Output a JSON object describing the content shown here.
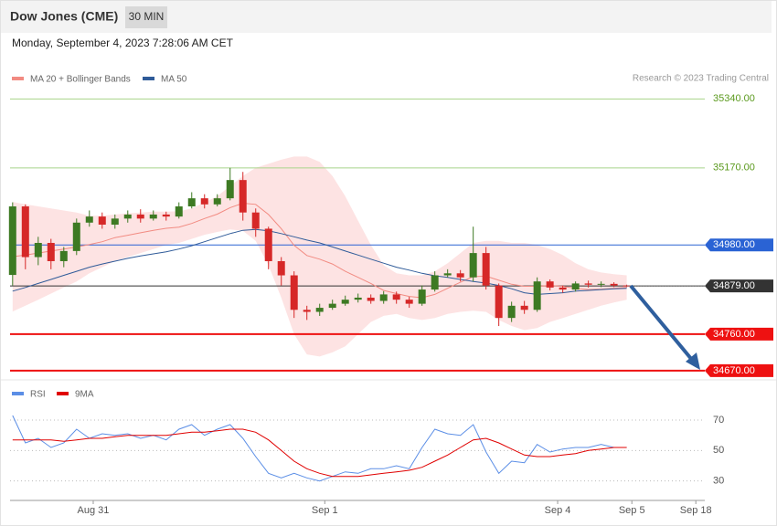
{
  "chart_data": [
    {
      "type": "candlestick",
      "title": "Dow Jones (CME)",
      "timeframe": "30 MIN",
      "subtitle": "Monday, September 4, 2023 7:28:06 AM CET",
      "credit": "Research © 2023 Trading Central",
      "open": [
        34906,
        35075,
        34950,
        34985,
        34940,
        34965,
        35035,
        35050,
        35030,
        35045,
        35055,
        35045,
        35055,
        35050,
        35075,
        35095,
        35080,
        35095,
        35140,
        35060,
        35020,
        34940,
        34905,
        34820,
        34815,
        34825,
        34835,
        34845,
        34850,
        34842,
        34858,
        34845,
        34835,
        34870,
        34905,
        34910,
        34900,
        34960,
        34880,
        34800,
        34830,
        34820,
        34890,
        34875,
        34870,
        34885,
        34882,
        34884,
        34880
      ],
      "high": [
        35085,
        35080,
        35000,
        34995,
        34975,
        35045,
        35065,
        35060,
        35055,
        35065,
        35068,
        35065,
        35062,
        35085,
        35110,
        35105,
        35105,
        35170,
        35160,
        35070,
        35025,
        34950,
        34915,
        34830,
        34835,
        34845,
        34855,
        34860,
        34858,
        34866,
        34865,
        34852,
        34880,
        34915,
        34920,
        34918,
        35025,
        34975,
        34885,
        34840,
        34842,
        34900,
        34895,
        34880,
        34890,
        34892,
        34890,
        34888,
        34882
      ],
      "low": [
        34880,
        34920,
        34930,
        34920,
        34925,
        34955,
        35025,
        35020,
        35020,
        35035,
        35035,
        35040,
        35040,
        35045,
        35070,
        35070,
        35075,
        35090,
        35040,
        35000,
        34920,
        34880,
        34800,
        34795,
        34805,
        34820,
        34830,
        34838,
        34835,
        34835,
        34835,
        34825,
        34830,
        34865,
        34900,
        34890,
        34890,
        34870,
        34780,
        34790,
        34810,
        34815,
        34868,
        34862,
        34865,
        34875,
        34876,
        34876,
        34876
      ],
      "close": [
        35075,
        34950,
        34985,
        34940,
        34965,
        35035,
        35050,
        35030,
        35045,
        35055,
        35045,
        35055,
        35050,
        35075,
        35095,
        35080,
        35095,
        35140,
        35060,
        35020,
        34940,
        34905,
        34820,
        34815,
        34825,
        34835,
        34845,
        34850,
        34842,
        34858,
        34845,
        34835,
        34870,
        34905,
        34910,
        34900,
        34960,
        34880,
        34800,
        34830,
        34820,
        34890,
        34875,
        34870,
        34885,
        34882,
        34884,
        34880,
        34879
      ],
      "up_color": "#3d7a23",
      "down_color": "#d62828",
      "overlays": [
        {
          "name": "MA 20 + Bollinger Bands",
          "color": "#f28b82",
          "band_color": "#fde3e3",
          "values": [
            34951,
            34955,
            34960,
            34965,
            34970,
            34975,
            34981,
            34988,
            34998,
            35004,
            35010,
            35016,
            35021,
            35024,
            35033,
            35045,
            35056,
            35072,
            35083,
            35080,
            35055,
            35020,
            34979,
            34954,
            34945,
            34933,
            34915,
            34900,
            34885,
            34868,
            34860,
            34853,
            34850,
            34858,
            34873,
            34888,
            34902,
            34903,
            34893,
            34883,
            34878,
            34878,
            34880,
            34878,
            34873,
            34870,
            34871,
            34873,
            34875
          ],
          "upper": [
            35086,
            35080,
            35075,
            35070,
            35065,
            35060,
            35052,
            35052,
            35055,
            35058,
            35060,
            35062,
            35062,
            35063,
            35070,
            35085,
            35100,
            35125,
            35150,
            35170,
            35180,
            35190,
            35198,
            35198,
            35185,
            35150,
            35100,
            35040,
            34980,
            34930,
            34910,
            34905,
            34905,
            34915,
            34935,
            34960,
            34985,
            34990,
            34990,
            34985,
            34985,
            34980,
            34970,
            34955,
            34935,
            34920,
            34912,
            34908,
            34905
          ],
          "lower": [
            34816,
            34830,
            34845,
            34860,
            34875,
            34890,
            34910,
            34925,
            34940,
            34950,
            34960,
            34970,
            34980,
            34985,
            34995,
            35005,
            35012,
            35018,
            35015,
            34990,
            34930,
            34850,
            34760,
            34710,
            34705,
            34715,
            34730,
            34760,
            34790,
            34805,
            34810,
            34800,
            34795,
            34800,
            34810,
            34815,
            34818,
            34815,
            34795,
            34780,
            34770,
            34775,
            34790,
            34800,
            34810,
            34820,
            34830,
            34838,
            34845
          ]
        },
        {
          "name": "MA 50",
          "color": "#2f5b99",
          "values": [
            34866,
            34875,
            34885,
            34895,
            34905,
            34915,
            34925,
            34933,
            34940,
            34947,
            34953,
            34958,
            34963,
            34970,
            34978,
            34988,
            34998,
            35008,
            35016,
            35018,
            35015,
            35008,
            35000,
            34992,
            34985,
            34975,
            34965,
            34955,
            34945,
            34935,
            34925,
            34918,
            34910,
            34904,
            34900,
            34895,
            34890,
            34886,
            34880,
            34872,
            34862,
            34858,
            34860,
            34862,
            34866,
            34868,
            34870,
            34872,
            34873
          ]
        }
      ],
      "levels": [
        {
          "value": 35340,
          "label": "35340.00",
          "color": "#a8d48a",
          "text_color": "#5b9a1e",
          "style": "text"
        },
        {
          "value": 35170,
          "label": "35170.00",
          "color": "#a8d48a",
          "text_color": "#5b9a1e",
          "style": "text"
        },
        {
          "value": 34980,
          "label": "34980.00",
          "color": "#2a63d4",
          "text_color": "#ffffff",
          "style": "box"
        },
        {
          "value": 34879,
          "label": "34879.00",
          "color": "#333333",
          "text_color": "#ffffff",
          "style": "box"
        },
        {
          "value": 34760,
          "label": "34760.00",
          "color": "#ee1111",
          "text_color": "#ffffff",
          "style": "box"
        },
        {
          "value": 34670,
          "label": "34670.00",
          "color": "#ee1111",
          "text_color": "#ffffff",
          "style": "box"
        }
      ],
      "xlim": [
        -0.2,
        54.1
      ],
      "ylim": [
        34645,
        35370
      ]
    },
    {
      "type": "line",
      "series": [
        {
          "name": "RSI",
          "color": "#5b8ee6",
          "values": [
            73,
            55,
            58,
            52,
            55,
            64,
            58,
            61,
            60,
            61,
            58,
            60,
            57,
            64,
            67,
            60,
            64,
            67,
            58,
            46,
            35,
            32,
            35,
            32,
            30,
            33,
            36,
            35,
            38,
            38,
            40,
            38,
            52,
            64,
            61,
            60,
            67,
            49,
            35,
            43,
            42,
            54,
            49,
            51,
            52,
            52,
            54,
            52,
            52
          ]
        },
        {
          "name": "9MA",
          "color": "#e00000",
          "values": [
            57,
            57,
            57,
            57,
            56,
            57,
            58,
            58,
            59,
            60,
            60,
            60,
            60,
            61,
            62,
            62,
            63,
            64,
            64,
            62,
            57,
            50,
            43,
            38,
            35,
            33,
            33,
            33,
            34,
            35,
            36,
            37,
            39,
            43,
            47,
            52,
            57,
            58,
            55,
            51,
            47,
            46,
            46,
            47,
            48,
            50,
            51,
            52,
            52
          ]
        }
      ],
      "xlim": [
        -0.2,
        54.1
      ],
      "ylim": [
        22,
        94
      ],
      "yticks": [
        70,
        50,
        30
      ],
      "xticks": [
        {
          "value": 6.3,
          "label": "Aug 31"
        },
        {
          "value": 24.4,
          "label": "Sep 1"
        },
        {
          "value": 42.6,
          "label": "Sep 4"
        },
        {
          "value": 48.4,
          "label": "Sep 5"
        },
        {
          "value": 53.4,
          "label": "Sep 18"
        }
      ]
    }
  ]
}
